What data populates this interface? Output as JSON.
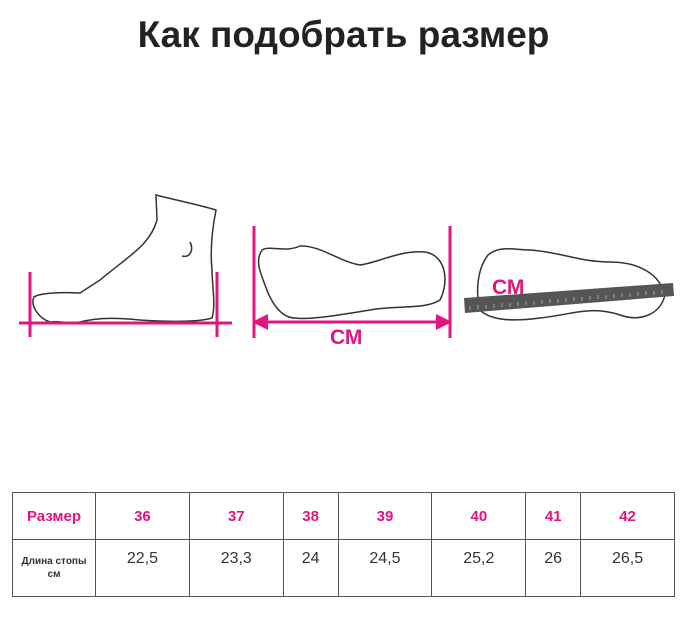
{
  "title": "Как подобрать размер",
  "colors": {
    "accent": "#e0157f",
    "ruler": "#555555"
  },
  "illustrations": {
    "side_foot": {
      "icon": "foot-side-icon"
    },
    "sole_arrow": {
      "icon": "foot-sole-icon",
      "label": "СМ"
    },
    "sole_ruler": {
      "icon": "ruler-icon",
      "label": "СМ"
    }
  },
  "table": {
    "row1_label": "Размер",
    "row2_label_line1": "Длина стопы",
    "row2_label_line2": "см",
    "sizes": [
      "36",
      "37",
      "38",
      "39",
      "40",
      "41",
      "42"
    ],
    "lengths": [
      "22,5",
      "23,3",
      "24",
      "24,5",
      "25,2",
      "26",
      "26,5"
    ]
  }
}
